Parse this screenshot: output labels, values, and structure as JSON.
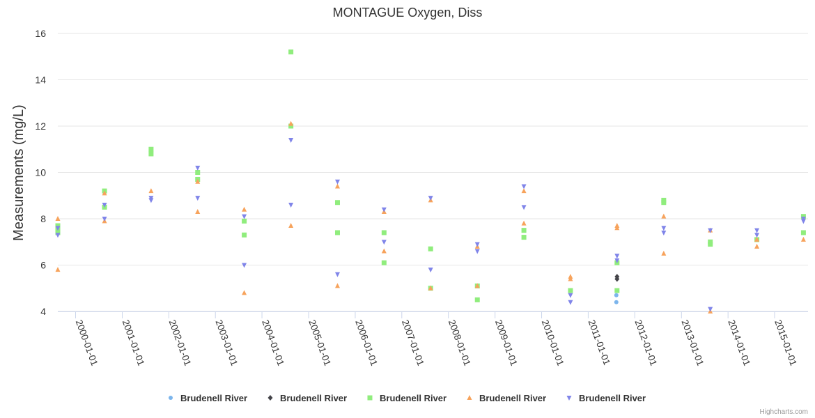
{
  "chart_data": {
    "type": "scatter",
    "title": "MONTAGUE Oxygen, Diss",
    "ylabel": "Measurements (mg/L)",
    "xlabel": "",
    "ylim": [
      4,
      16
    ],
    "yticks": [
      4,
      6,
      8,
      10,
      12,
      14,
      16
    ],
    "xlim": [
      "1999-08-15",
      "2015-09-20"
    ],
    "xticks": [
      "2000-01-01",
      "2001-01-01",
      "2002-01-01",
      "2003-01-01",
      "2004-01-01",
      "2005-01-01",
      "2006-01-01",
      "2007-01-01",
      "2008-01-01",
      "2009-01-01",
      "2010-01-01",
      "2011-01-01",
      "2012-01-01",
      "2013-01-01",
      "2014-01-01",
      "2015-01-01"
    ],
    "grid": "horizontal",
    "legend": "bottom",
    "credits": "Highcharts.com",
    "series": [
      {
        "name": "Brudenell River",
        "marker": "circle",
        "color": "#7cb5ec",
        "points": [
          [
            "2011-08-15",
            4.4
          ],
          [
            "2011-08-15",
            4.7
          ]
        ]
      },
      {
        "name": "Brudenell River",
        "marker": "diamond",
        "color": "#434348",
        "points": [
          [
            "2011-08-15",
            5.4
          ],
          [
            "2011-08-15",
            5.5
          ]
        ]
      },
      {
        "name": "Brudenell River",
        "marker": "square",
        "color": "#90ed7d",
        "points": [
          [
            "1999-08-15",
            7.7
          ],
          [
            "1999-08-15",
            7.5
          ],
          [
            "1999-08-15",
            7.4
          ],
          [
            "2000-08-15",
            9.2
          ],
          [
            "2000-08-15",
            8.5
          ],
          [
            "2001-08-15",
            11.0
          ],
          [
            "2001-08-15",
            10.8
          ],
          [
            "2002-08-15",
            10.0
          ],
          [
            "2002-08-15",
            9.7
          ],
          [
            "2003-08-15",
            7.9
          ],
          [
            "2003-08-15",
            7.3
          ],
          [
            "2004-08-15",
            15.2
          ],
          [
            "2004-08-15",
            12.0
          ],
          [
            "2005-08-15",
            8.7
          ],
          [
            "2005-08-15",
            7.4
          ],
          [
            "2006-08-15",
            7.4
          ],
          [
            "2006-08-15",
            6.1
          ],
          [
            "2007-08-15",
            6.7
          ],
          [
            "2007-08-15",
            5.0
          ],
          [
            "2008-08-15",
            5.1
          ],
          [
            "2008-08-15",
            4.5
          ],
          [
            "2009-08-15",
            7.5
          ],
          [
            "2009-08-15",
            7.2
          ],
          [
            "2010-08-15",
            4.9
          ],
          [
            "2011-08-15",
            6.1
          ],
          [
            "2011-08-15",
            4.9
          ],
          [
            "2012-08-15",
            8.8
          ],
          [
            "2012-08-15",
            8.7
          ],
          [
            "2013-08-15",
            7.0
          ],
          [
            "2013-08-15",
            6.9
          ],
          [
            "2014-08-15",
            7.1
          ],
          [
            "2015-08-15",
            8.1
          ],
          [
            "2015-08-15",
            7.4
          ]
        ]
      },
      {
        "name": "Brudenell River",
        "marker": "triangle",
        "color": "#f7a35c",
        "points": [
          [
            "1999-08-15",
            8.0
          ],
          [
            "1999-08-15",
            5.8
          ],
          [
            "2000-08-15",
            9.1
          ],
          [
            "2000-08-15",
            7.9
          ],
          [
            "2001-08-15",
            9.2
          ],
          [
            "2002-08-15",
            9.6
          ],
          [
            "2002-08-15",
            8.3
          ],
          [
            "2003-08-15",
            8.4
          ],
          [
            "2003-08-15",
            4.8
          ],
          [
            "2004-08-15",
            12.1
          ],
          [
            "2004-08-15",
            7.7
          ],
          [
            "2005-08-15",
            9.4
          ],
          [
            "2005-08-15",
            5.1
          ],
          [
            "2006-08-15",
            8.3
          ],
          [
            "2006-08-15",
            6.6
          ],
          [
            "2007-08-15",
            8.8
          ],
          [
            "2007-08-15",
            5.0
          ],
          [
            "2008-08-15",
            6.8
          ],
          [
            "2008-08-15",
            5.1
          ],
          [
            "2009-08-15",
            9.2
          ],
          [
            "2009-08-15",
            7.8
          ],
          [
            "2010-08-15",
            5.5
          ],
          [
            "2010-08-15",
            5.4
          ],
          [
            "2011-08-15",
            7.7
          ],
          [
            "2011-08-15",
            7.6
          ],
          [
            "2012-08-15",
            8.1
          ],
          [
            "2012-08-15",
            6.5
          ],
          [
            "2013-08-15",
            7.5
          ],
          [
            "2013-08-15",
            4.0
          ],
          [
            "2014-08-15",
            7.1
          ],
          [
            "2014-08-15",
            6.8
          ],
          [
            "2015-08-15",
            7.1
          ]
        ]
      },
      {
        "name": "Brudenell River",
        "marker": "triangle-down",
        "color": "#8085e9",
        "points": [
          [
            "1999-08-15",
            7.6
          ],
          [
            "1999-08-15",
            7.3
          ],
          [
            "2000-08-15",
            8.6
          ],
          [
            "2000-08-15",
            8.0
          ],
          [
            "2001-08-15",
            8.9
          ],
          [
            "2001-08-15",
            8.8
          ],
          [
            "2002-08-15",
            10.2
          ],
          [
            "2002-08-15",
            8.9
          ],
          [
            "2003-08-15",
            8.1
          ],
          [
            "2003-08-15",
            6.0
          ],
          [
            "2004-08-15",
            11.4
          ],
          [
            "2004-08-15",
            8.6
          ],
          [
            "2005-08-15",
            9.6
          ],
          [
            "2005-08-15",
            5.6
          ],
          [
            "2006-08-15",
            8.4
          ],
          [
            "2006-08-15",
            7.0
          ],
          [
            "2007-08-15",
            8.9
          ],
          [
            "2007-08-15",
            5.8
          ],
          [
            "2008-08-15",
            6.9
          ],
          [
            "2008-08-15",
            6.6
          ],
          [
            "2009-08-15",
            9.4
          ],
          [
            "2009-08-15",
            8.5
          ],
          [
            "2010-08-15",
            4.7
          ],
          [
            "2010-08-15",
            4.4
          ],
          [
            "2011-08-15",
            6.4
          ],
          [
            "2011-08-15",
            6.2
          ],
          [
            "2012-08-15",
            7.6
          ],
          [
            "2012-08-15",
            7.4
          ],
          [
            "2013-08-15",
            7.5
          ],
          [
            "2013-08-15",
            4.1
          ],
          [
            "2014-08-15",
            7.5
          ],
          [
            "2014-08-15",
            7.3
          ],
          [
            "2015-08-15",
            8.0
          ],
          [
            "2015-08-15",
            7.9
          ]
        ]
      }
    ]
  }
}
